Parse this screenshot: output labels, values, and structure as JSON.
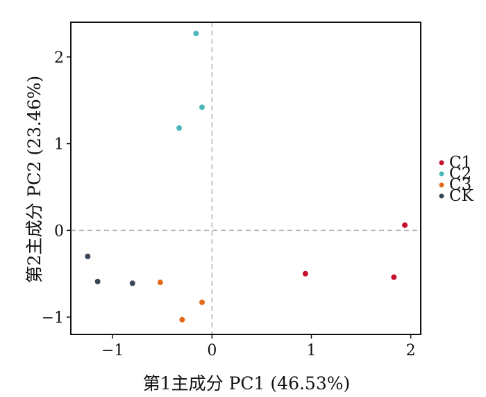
{
  "chart_data": {
    "type": "scatter",
    "xlabel": "第1主成分  PC1 (46.53%)",
    "ylabel": "第2主成分  PC2 (23.46%)",
    "xlim": [
      -1.42,
      2.1
    ],
    "ylim": [
      -1.2,
      2.4
    ],
    "x_ticks": [
      -1,
      0,
      1,
      2
    ],
    "x_tick_labels": [
      "−1",
      "0",
      "1",
      "2"
    ],
    "y_ticks": [
      -1,
      0,
      1,
      2
    ],
    "y_tick_labels": [
      "−1",
      "0",
      "1",
      "2"
    ],
    "grid": false,
    "reference_lines": {
      "x": 0,
      "y": 0,
      "style": "dashed",
      "color": "#b3b3b3"
    },
    "legend_position": "right",
    "series": [
      {
        "name": "C1",
        "color": "#c8102e",
        "points": [
          [
            1.94,
            0.06
          ],
          [
            1.83,
            -0.54
          ],
          [
            0.94,
            -0.5
          ]
        ]
      },
      {
        "name": "C2",
        "color": "#4db6ba",
        "points": [
          [
            -0.16,
            2.27
          ],
          [
            -0.1,
            1.42
          ],
          [
            -0.33,
            1.18
          ]
        ]
      },
      {
        "name": "C3",
        "color": "#e36a1b",
        "points": [
          [
            -0.52,
            -0.6
          ],
          [
            -0.1,
            -0.83
          ],
          [
            -0.3,
            -1.03
          ]
        ]
      },
      {
        "name": "CK",
        "color": "#3a4757",
        "points": [
          [
            -1.25,
            -0.3
          ],
          [
            -1.15,
            -0.59
          ],
          [
            -0.8,
            -0.61
          ]
        ]
      }
    ]
  }
}
